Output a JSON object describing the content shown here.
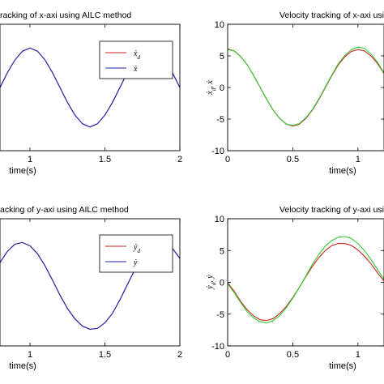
{
  "colors": {
    "red": "#cc2222",
    "blue": "#2222bb",
    "green": "#33cc33"
  },
  "chart_data": [
    {
      "type": "line",
      "title": "racking of x-axi using AILC method",
      "xlabel": "time(s)",
      "ylabel": "",
      "xlim": [
        0.8,
        2.0
      ],
      "ylim": [
        -8,
        8
      ],
      "xticks": [
        "1",
        "1.5",
        "2"
      ],
      "xtick_values": [
        1,
        1.5,
        2
      ],
      "yticks": [],
      "legend": {
        "position": "top-right",
        "labels": [
          "ẋ_d",
          "ẋ"
        ]
      },
      "series": [
        {
          "name": "ẋ_d",
          "color": "red",
          "x": [
            0.8,
            0.85,
            0.9,
            0.95,
            1.0,
            1.05,
            1.1,
            1.15,
            1.2,
            1.25,
            1.3,
            1.35,
            1.4,
            1.45,
            1.5,
            1.55,
            1.6,
            1.65,
            1.7,
            1.75,
            1.8,
            1.85,
            1.9,
            1.95,
            2.0
          ],
          "y": [
            0.0,
            1.9,
            3.5,
            4.6,
            5.0,
            4.6,
            3.5,
            1.9,
            0.0,
            -1.9,
            -3.5,
            -4.6,
            -5.0,
            -4.6,
            -3.5,
            -1.9,
            0.0,
            1.9,
            3.5,
            4.6,
            5.0,
            4.6,
            3.5,
            1.9,
            0.0
          ]
        },
        {
          "name": "ẋ",
          "color": "blue",
          "x": [
            0.8,
            0.85,
            0.9,
            0.95,
            1.0,
            1.05,
            1.1,
            1.15,
            1.2,
            1.25,
            1.3,
            1.35,
            1.4,
            1.45,
            1.5,
            1.55,
            1.6,
            1.65,
            1.7,
            1.75,
            1.8,
            1.85,
            1.9,
            1.95,
            2.0
          ],
          "y": [
            0.0,
            1.9,
            3.5,
            4.6,
            5.0,
            4.6,
            3.5,
            1.9,
            0.0,
            -1.9,
            -3.5,
            -4.6,
            -5.0,
            -4.6,
            -3.5,
            -1.9,
            0.0,
            1.9,
            3.5,
            4.6,
            5.0,
            4.6,
            3.5,
            1.9,
            0.0
          ]
        }
      ]
    },
    {
      "type": "line",
      "title": "Velocity tracking of x-axi usi",
      "xlabel": "time(s)",
      "ylabel": "ẋ_d, ẋ",
      "xlim": [
        0,
        1.2
      ],
      "ylim": [
        -10,
        10
      ],
      "xticks": [
        "0",
        "0.5",
        "1"
      ],
      "xtick_values": [
        0,
        0.5,
        1
      ],
      "yticks": [
        "10",
        "5",
        "0",
        "-5",
        "-10"
      ],
      "ytick_values": [
        10,
        5,
        0,
        -5,
        -10
      ],
      "legend": null,
      "series": [
        {
          "name": "",
          "color": "red",
          "x": [
            0,
            0.05,
            0.1,
            0.15,
            0.2,
            0.25,
            0.3,
            0.35,
            0.4,
            0.45,
            0.5,
            0.55,
            0.6,
            0.65,
            0.7,
            0.75,
            0.8,
            0.85,
            0.9,
            0.95,
            1.0,
            1.05,
            1.1,
            1.15,
            1.2
          ],
          "y": [
            6.1,
            5.8,
            4.9,
            3.6,
            1.9,
            0.0,
            -1.9,
            -3.6,
            -4.9,
            -5.8,
            -6.1,
            -5.8,
            -4.9,
            -3.6,
            -1.9,
            0.0,
            1.9,
            3.6,
            4.9,
            5.7,
            6.0,
            5.8,
            5.0,
            3.8,
            2.2
          ]
        },
        {
          "name": "",
          "color": "green",
          "x": [
            0,
            0.05,
            0.1,
            0.15,
            0.2,
            0.25,
            0.3,
            0.35,
            0.4,
            0.45,
            0.5,
            0.55,
            0.6,
            0.65,
            0.7,
            0.75,
            0.8,
            0.85,
            0.9,
            0.95,
            1.0,
            1.05,
            1.1,
            1.15,
            1.2
          ],
          "y": [
            6.0,
            5.8,
            4.9,
            3.6,
            1.9,
            0.0,
            -1.9,
            -3.6,
            -4.9,
            -5.8,
            -6.0,
            -5.7,
            -4.8,
            -3.5,
            -1.8,
            0.1,
            2.0,
            3.8,
            5.1,
            6.0,
            6.4,
            6.2,
            5.3,
            4.0,
            2.3
          ]
        }
      ]
    },
    {
      "type": "line",
      "title": "acking of y-axi using AILC method",
      "xlabel": "time(s)",
      "ylabel": "",
      "xlim": [
        0.8,
        2.0
      ],
      "ylim": [
        -8,
        8
      ],
      "xticks": [
        "1",
        "1.5",
        "2"
      ],
      "xtick_values": [
        1,
        1.5,
        2
      ],
      "yticks": [],
      "legend": {
        "position": "top-right",
        "labels": [
          "ẏ_d",
          "ẏ"
        ]
      },
      "series": [
        {
          "name": "ẏ_d",
          "color": "red",
          "x": [
            0.8,
            0.85,
            0.9,
            0.95,
            1.0,
            1.05,
            1.1,
            1.15,
            1.2,
            1.25,
            1.3,
            1.35,
            1.4,
            1.45,
            1.5,
            1.55,
            1.6,
            1.65,
            1.7,
            1.75,
            1.8,
            1.85,
            1.9,
            1.95,
            2.0
          ],
          "y": [
            2.5,
            3.9,
            4.8,
            5.0,
            4.6,
            3.6,
            2.1,
            0.3,
            -1.6,
            -3.3,
            -4.6,
            -5.5,
            -5.9,
            -5.8,
            -5.1,
            -3.9,
            -2.2,
            -0.3,
            1.6,
            3.3,
            4.5,
            5.1,
            5.0,
            4.3,
            3.0
          ]
        },
        {
          "name": "ẏ",
          "color": "blue",
          "x": [
            0.8,
            0.85,
            0.9,
            0.95,
            1.0,
            1.05,
            1.1,
            1.15,
            1.2,
            1.25,
            1.3,
            1.35,
            1.4,
            1.45,
            1.5,
            1.55,
            1.6,
            1.65,
            1.7,
            1.75,
            1.8,
            1.85,
            1.9,
            1.95,
            2.0
          ],
          "y": [
            2.5,
            3.9,
            4.8,
            5.0,
            4.6,
            3.6,
            2.1,
            0.3,
            -1.6,
            -3.3,
            -4.6,
            -5.5,
            -5.9,
            -5.8,
            -5.1,
            -3.9,
            -2.2,
            -0.3,
            1.6,
            3.3,
            4.5,
            5.1,
            5.0,
            4.3,
            3.0
          ]
        }
      ]
    },
    {
      "type": "line",
      "title": "Velocity tracking of y-axi usi",
      "xlabel": "time(s)",
      "ylabel": "ẏ_d, ẏ",
      "xlim": [
        0,
        1.2
      ],
      "ylim": [
        -10,
        10
      ],
      "xticks": [
        "0",
        "0.5",
        "1"
      ],
      "xtick_values": [
        0,
        0.5,
        1
      ],
      "yticks": [
        "10",
        "5",
        "0",
        "-5",
        "-10"
      ],
      "ytick_values": [
        10,
        5,
        0,
        -5,
        -10
      ],
      "legend": null,
      "series": [
        {
          "name": "",
          "color": "red",
          "x": [
            0,
            0.02,
            0.05,
            0.1,
            0.15,
            0.2,
            0.25,
            0.3,
            0.35,
            0.4,
            0.45,
            0.5,
            0.55,
            0.6,
            0.65,
            0.7,
            0.75,
            0.8,
            0.85,
            0.9,
            0.95,
            1.0,
            1.05,
            1.1,
            1.15,
            1.2
          ],
          "y": [
            0.0,
            -0.6,
            -1.4,
            -3.0,
            -4.3,
            -5.3,
            -5.9,
            -6.0,
            -5.7,
            -4.9,
            -3.8,
            -2.4,
            -0.8,
            0.9,
            2.5,
            3.9,
            5.0,
            5.8,
            6.1,
            6.1,
            5.8,
            5.1,
            4.1,
            2.9,
            1.5,
            0.2
          ]
        },
        {
          "name": "",
          "color": "green",
          "x": [
            0,
            0.02,
            0.05,
            0.1,
            0.15,
            0.2,
            0.25,
            0.3,
            0.35,
            0.4,
            0.45,
            0.5,
            0.55,
            0.6,
            0.65,
            0.7,
            0.75,
            0.8,
            0.85,
            0.9,
            0.95,
            1.0,
            1.05,
            1.1,
            1.15,
            1.2
          ],
          "y": [
            -0.2,
            -0.8,
            -1.6,
            -3.2,
            -4.6,
            -5.6,
            -6.2,
            -6.4,
            -6.0,
            -5.2,
            -4.0,
            -2.5,
            -0.8,
            1.0,
            2.8,
            4.4,
            5.7,
            6.6,
            7.1,
            7.2,
            6.9,
            6.1,
            5.0,
            3.6,
            2.0,
            0.5
          ]
        }
      ]
    }
  ]
}
